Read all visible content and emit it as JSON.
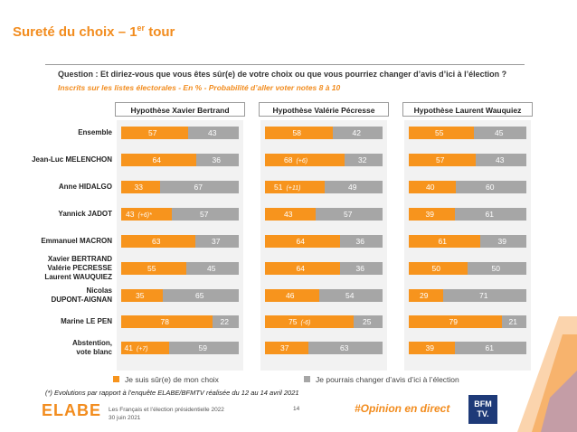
{
  "header": {
    "title_main": "Sureté du choix – 1",
    "title_sup": "er",
    "title_tail": " tour",
    "question": "Question : Et diriez-vous que vous êtes sûr(e) de votre choix ou que vous pourriez changer d’avis d’ici à l’élection ?",
    "subtitle": "Inscrits sur les listes électorales - En % - Probabilité d’aller voter notes 8 à 10"
  },
  "panels": [
    {
      "title": "Hypothèse Xavier Bertrand"
    },
    {
      "title": "Hypothèse Valérie Pécresse"
    },
    {
      "title": "Hypothèse Laurent Wauquiez"
    }
  ],
  "rows": [
    {
      "lines": [
        "Ensemble"
      ]
    },
    {
      "lines": [
        "Jean-Luc MELENCHON"
      ]
    },
    {
      "lines": [
        "Anne HIDALGO"
      ]
    },
    {
      "lines": [
        "Yannick JADOT"
      ]
    },
    {
      "lines": [
        "Emmanuel MACRON"
      ]
    },
    {
      "lines": [
        "Xavier BERTRAND",
        "Valérie PECRESSE",
        "Laurent WAUQUIEZ"
      ]
    },
    {
      "lines": [
        "Nicolas",
        "DUPONT-AIGNAN"
      ]
    },
    {
      "lines": [
        "Marine LE PEN"
      ]
    },
    {
      "lines": [
        "Abstention,",
        "vote blanc"
      ]
    }
  ],
  "chart_data": [
    {
      "type": "bar",
      "title": "Hypothèse Xavier Bertrand",
      "categories": [
        "Ensemble",
        "Jean-Luc MELENCHON",
        "Anne HIDALGO",
        "Yannick JADOT",
        "Emmanuel MACRON",
        "Xavier BERTRAND / Valérie PECRESSE / Laurent WAUQUIEZ",
        "Nicolas DUPONT-AIGNAN",
        "Marine LE PEN",
        "Abstention, vote blanc"
      ],
      "series": [
        {
          "name": "Je suis sûr(e) de mon choix",
          "values": [
            57,
            64,
            33,
            43,
            63,
            55,
            35,
            78,
            41
          ],
          "annotations": [
            "",
            "",
            "",
            "(+6)*",
            "",
            "",
            "",
            "",
            "(+7)"
          ]
        },
        {
          "name": "Je pourrais changer d’avis d’ici à l’élection",
          "values": [
            43,
            36,
            67,
            57,
            37,
            45,
            65,
            22,
            59
          ]
        }
      ]
    },
    {
      "type": "bar",
      "title": "Hypothèse Valérie Pécresse",
      "categories": [
        "Ensemble",
        "Jean-Luc MELENCHON",
        "Anne HIDALGO",
        "Yannick JADOT",
        "Emmanuel MACRON",
        "Xavier BERTRAND / Valérie PECRESSE / Laurent WAUQUIEZ",
        "Nicolas DUPONT-AIGNAN",
        "Marine LE PEN",
        "Abstention, vote blanc"
      ],
      "series": [
        {
          "name": "Je suis sûr(e) de mon choix",
          "values": [
            58,
            68,
            51,
            43,
            64,
            64,
            46,
            75,
            37
          ],
          "annotations": [
            "",
            "(+6)",
            "(+11)",
            "",
            "",
            "",
            "",
            "(-6)",
            ""
          ]
        },
        {
          "name": "Je pourrais changer d’avis d’ici à l’élection",
          "values": [
            42,
            32,
            49,
            57,
            36,
            36,
            54,
            25,
            63
          ]
        }
      ]
    },
    {
      "type": "bar",
      "title": "Hypothèse Laurent Wauquiez",
      "categories": [
        "Ensemble",
        "Jean-Luc MELENCHON",
        "Anne HIDALGO",
        "Yannick JADOT",
        "Emmanuel MACRON",
        "Xavier BERTRAND / Valérie PECRESSE / Laurent WAUQUIEZ",
        "Nicolas DUPONT-AIGNAN",
        "Marine LE PEN",
        "Abstention, vote blanc"
      ],
      "series": [
        {
          "name": "Je suis sûr(e) de mon choix",
          "values": [
            55,
            57,
            40,
            39,
            61,
            50,
            29,
            79,
            39
          ],
          "annotations": [
            "",
            "",
            "",
            "",
            "",
            "",
            "",
            "",
            ""
          ]
        },
        {
          "name": "Je pourrais changer d’avis d’ici à l’élection",
          "values": [
            45,
            43,
            60,
            61,
            39,
            50,
            71,
            21,
            61
          ]
        }
      ]
    }
  ],
  "colors": {
    "sure": "#f7941d",
    "change": "#a6a6a6",
    "accent": "#f28c1e"
  },
  "legend": {
    "sure": "Je suis sûr(e) de mon choix",
    "change": "Je pourrais changer d’avis d’ici à l’élection"
  },
  "footer": {
    "footnote": "(*) Evolutions par rapport à l’enquête ELABE/BFMTV réalisée du 12 au 14 avril 2021",
    "logo": "ELABE",
    "source_line1": "Les Français et l’élection présidentielle 2022",
    "source_line2": "30 juin 2021",
    "page": "14",
    "hashtag": "#Opinion en direct",
    "bfm_line1": "BFM",
    "bfm_line2": "TV."
  }
}
